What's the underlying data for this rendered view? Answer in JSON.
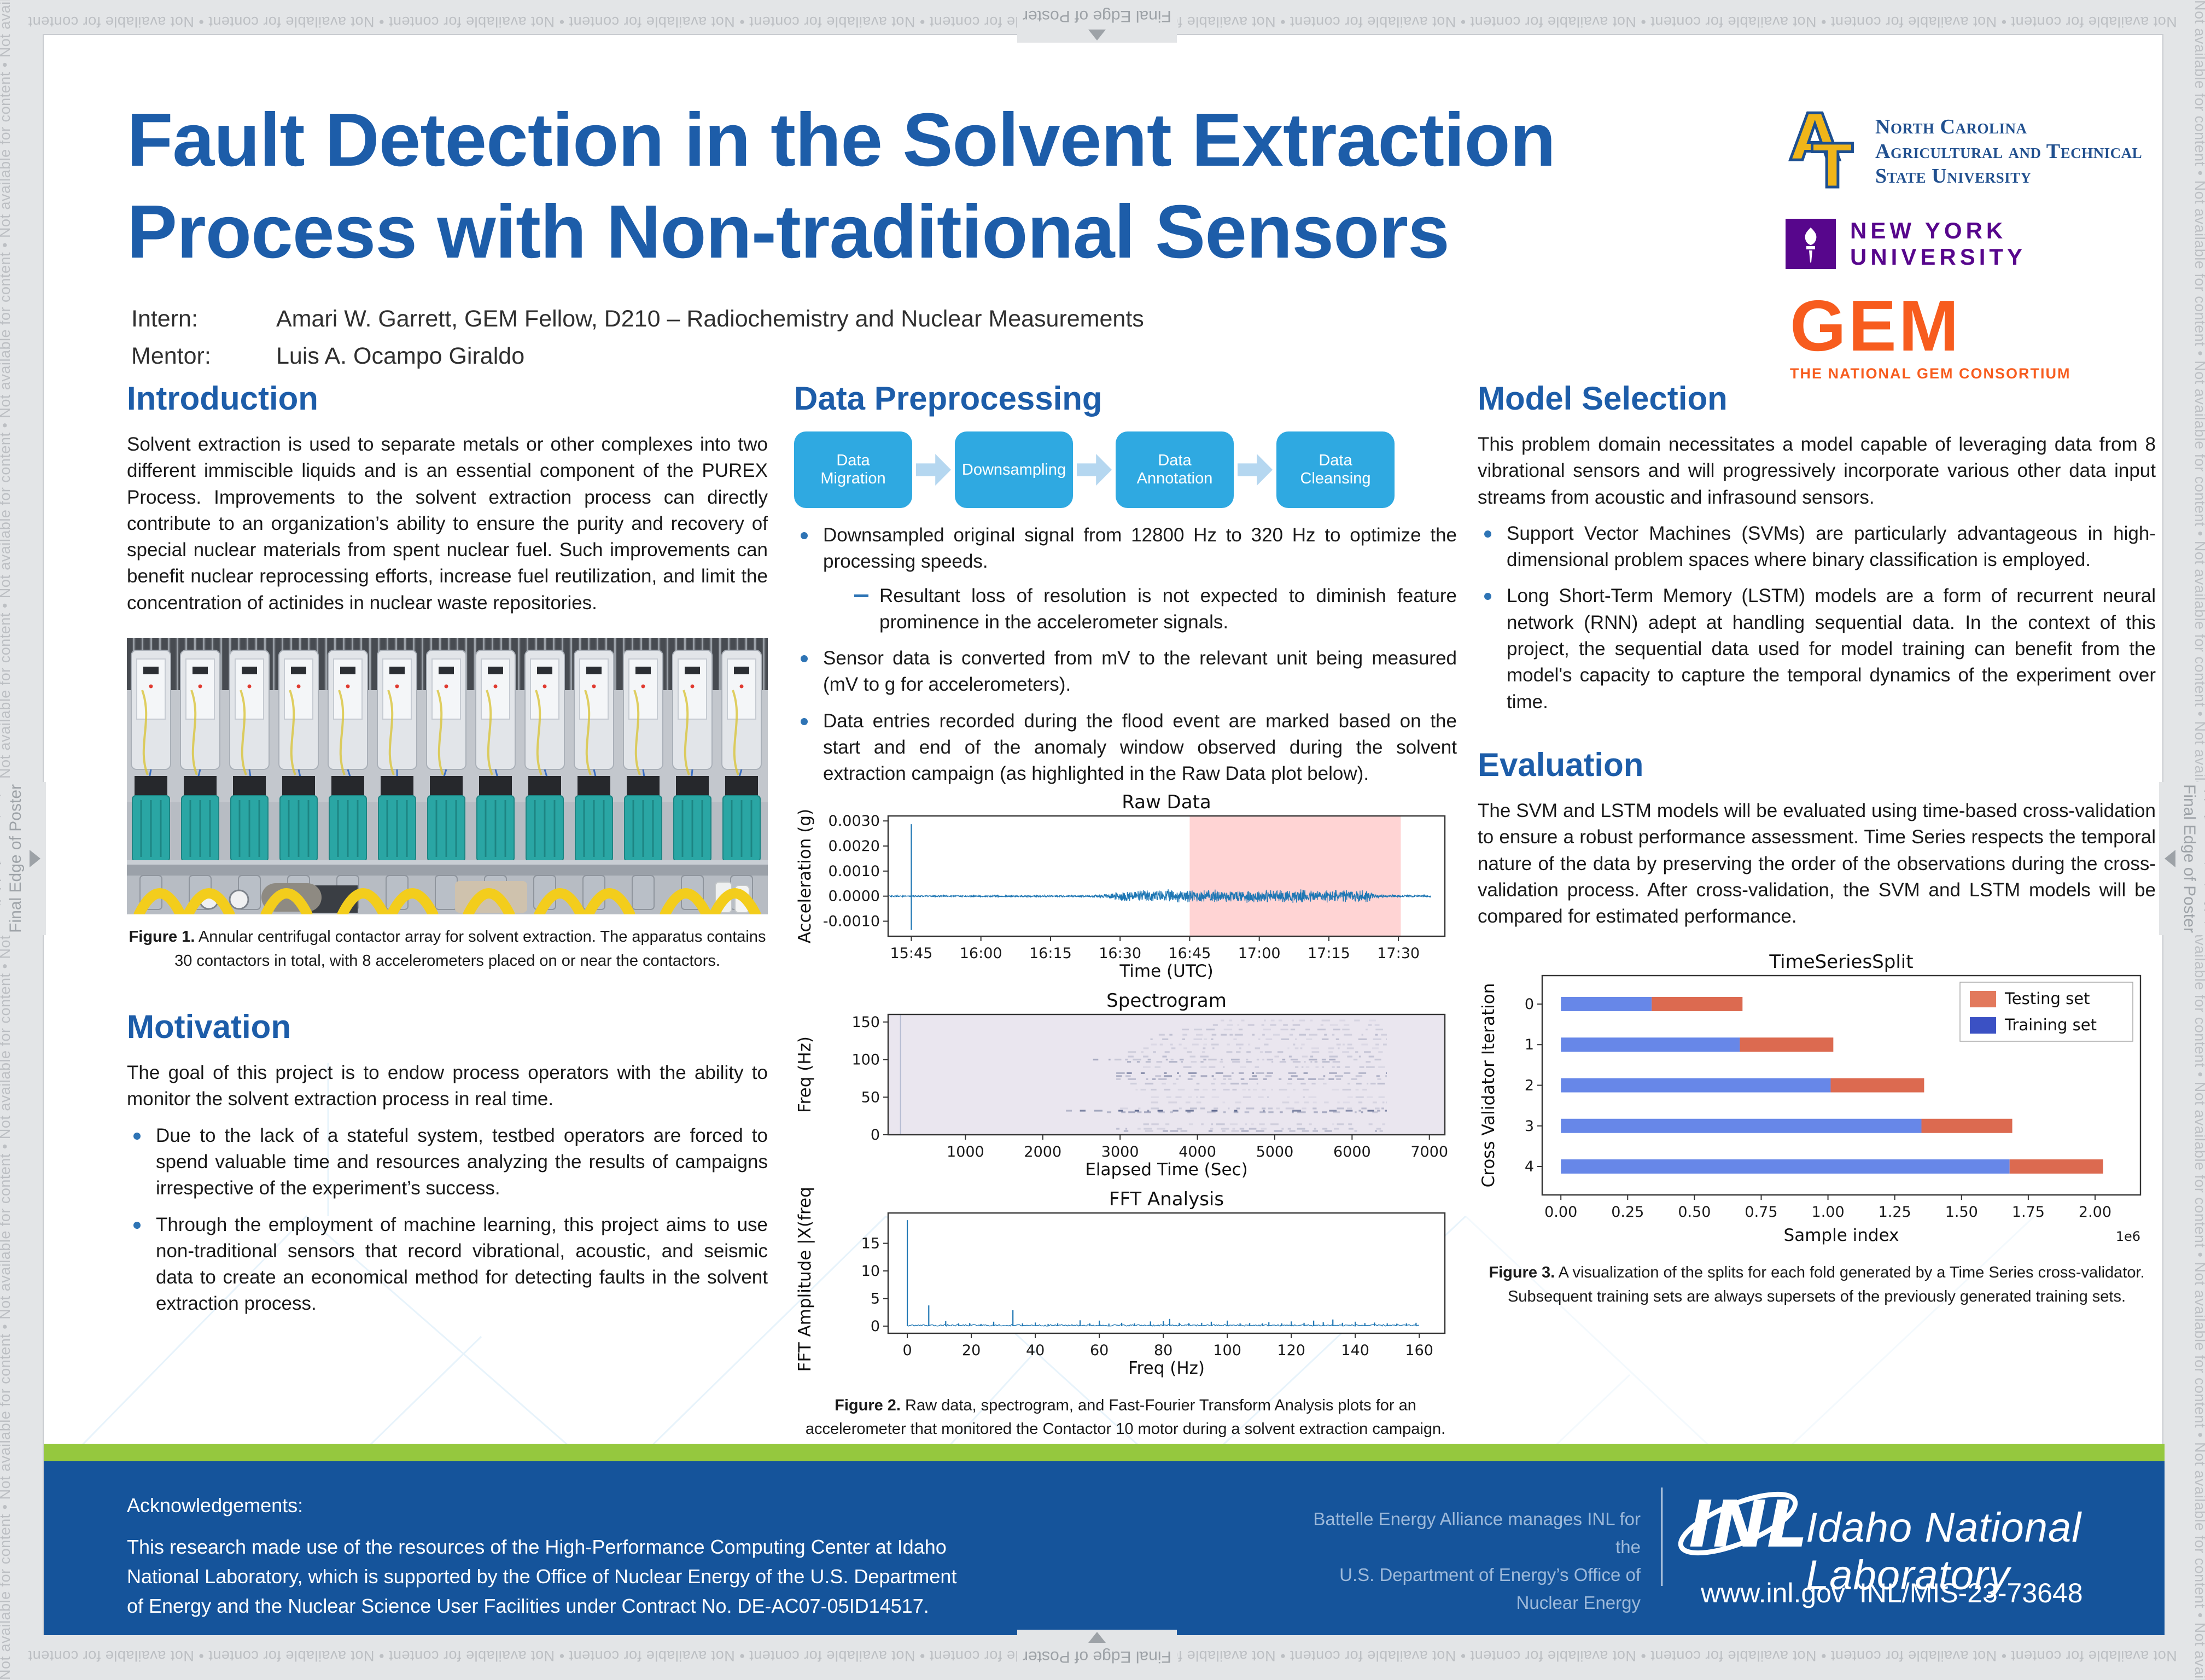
{
  "edge": {
    "repeat_text": "Not available for content",
    "final_label": "Final Edge of Poster"
  },
  "header": {
    "title_line1": "Fault Detection in the Solvent Extraction",
    "title_line2": "Process with Non-traditional Sensors",
    "intern_label": "Intern:",
    "intern_value": "Amari W. Garrett, GEM Fellow, D210 – Radiochemistry and Nuclear Measurements",
    "mentor_label": "Mentor:",
    "mentor_value": "Luis A. Ocampo Giraldo"
  },
  "logos": {
    "ncat_monogram": "A&T",
    "ncat_line1": "North Carolina",
    "ncat_line2": "Agricultural and Technical",
    "ncat_line3": "State University",
    "nyu_text": "NEW YORK UNIVERSITY",
    "gem_text": "GEM",
    "gem_tagline": "THE NATIONAL GEM CONSORTIUM"
  },
  "intro": {
    "heading": "Introduction",
    "body": "Solvent extraction is used to separate metals or other complexes into two different immiscible liquids and is an essential component of the PUREX Process. Improvements to the solvent extraction process can directly contribute to an organization’s ability to ensure the purity and recovery of special nuclear materials from spent nuclear fuel. Such improvements can benefit nuclear reprocessing efforts, increase fuel reutilization, and limit the concentration of actinides in nuclear waste repositories."
  },
  "figure1": {
    "label": "Figure 1.",
    "text": " Annular centrifugal contactor array for solvent extraction. The apparatus contains 30 contactors in total, with 8 accelerometers placed on or near the contactors."
  },
  "motivation": {
    "heading": "Motivation",
    "body": "The goal of this project is to endow process operators with the ability to monitor the solvent extraction process in real time.",
    "bullets": [
      "Due to the lack of a stateful system, testbed operators are forced to spend valuable time and resources analyzing the results of campaigns irrespective of the experiment’s success.",
      "Through the employment of machine learning, this project aims to use non-traditional sensors that record vibrational, acoustic, and seismic data to create an economical method for detecting faults in the solvent extraction process."
    ]
  },
  "preprocessing": {
    "heading": "Data Preprocessing",
    "flow": [
      "Data Migration",
      "Downsampling",
      "Data Annotation",
      "Data Cleansing"
    ],
    "bullet1": "Downsampled original signal from 12800 Hz to 320 Hz to optimize the processing speeds.",
    "sub1": "Resultant loss of resolution is not expected to diminish feature prominence in the accelerometer signals.",
    "bullet2": "Sensor data is converted from mV to the relevant unit being measured (mV to g for accelerometers).",
    "bullet3": "Data entries recorded during the flood event are marked based on the start and end of the anomaly window observed during the solvent extraction campaign (as highlighted in the Raw Data plot below)."
  },
  "figure2": {
    "label": "Figure 2.",
    "text": " Raw data, spectrogram, and Fast-Fourier Transform Analysis plots for an accelerometer that monitored the Contactor 10 motor during a solvent extraction campaign."
  },
  "model": {
    "heading": "Model Selection",
    "body": "This problem domain necessitates a model capable of leveraging data from 8 vibrational sensors and will progressively incorporate various other data input streams from acoustic and infrasound sensors.",
    "bullets": [
      "Support Vector Machines (SVMs) are particularly advantageous in high-dimensional problem spaces where binary classification is employed.",
      "Long Short-Term Memory (LSTM) models are a form of recurrent neural network (RNN) adept at handling sequential data. In the context of this project, the sequential data used for model training can benefit from the model's capacity to capture the temporal dynamics of the experiment over time."
    ]
  },
  "evaluation": {
    "heading": "Evaluation",
    "body": "The SVM and LSTM models will be evaluated using time-based cross-validation to ensure a robust performance assessment. Time Series respects the temporal nature of the data by preserving the order of the observations during the cross-validation process. After cross-validation, the SVM and LSTM models will be compared for estimated performance."
  },
  "figure3": {
    "label": "Figure 3.",
    "text": " A visualization of the splits for each fold generated by a Time Series cross-validator. Subsequent training sets are always supersets of the previously generated training sets."
  },
  "footer": {
    "ack_label": "Acknowledgements:",
    "ack_body": "This research made use of the resources of the High-Performance Computing Center at Idaho National Laboratory, which is supported by the Office of Nuclear Energy of the U.S. Department of Energy and the Nuclear Science User Facilities under Contract No. DE-AC07-05ID14517.",
    "battelle_line1": "Battelle Energy Alliance manages INL for the",
    "battelle_line2": "U.S. Department of Energy’s Office of Nuclear Energy",
    "inl_mark": "INL",
    "inl_wordmark": "Idaho National Laboratory",
    "url": "www.inl.gov",
    "doc_number": "INL/MIS-23-73648",
    "green_color": "#95c83e",
    "blue_color": "#15549b"
  },
  "chart_data": [
    {
      "id": "raw",
      "type": "line",
      "title": "Raw Data",
      "xlabel": "Time (UTC)",
      "ylabel": "Acceleration (g)",
      "x_tick_labels": [
        "15:45",
        "16:00",
        "16:15",
        "16:30",
        "16:45",
        "17:00",
        "17:15",
        "17:30"
      ],
      "x_tick_minutes": [
        5,
        20,
        35,
        50,
        65,
        80,
        95,
        110
      ],
      "xlim_minutes": [
        0,
        120
      ],
      "y_ticks": [
        0.003,
        0.002,
        0.001,
        0.0,
        -0.001
      ],
      "y_tick_labels": [
        "0.0030",
        "0.0020",
        "0.0010",
        "0.0000",
        "-0.0010"
      ],
      "ylim": [
        -0.0016,
        0.0032
      ],
      "line_color": "#1f77b4",
      "anomaly_window": {
        "start_min": 65,
        "end_min": 110.5,
        "color": "#ffc6c6"
      },
      "spike": {
        "minute": 5,
        "ymin": -0.00135,
        "ymax": 0.00287
      },
      "noise_envelope": [
        [
          0,
          3e-05
        ],
        [
          43,
          4e-05
        ],
        [
          47,
          9e-05
        ],
        [
          51,
          0.00024
        ],
        [
          56,
          0.00028
        ],
        [
          99,
          0.00029
        ],
        [
          104,
          0.00028
        ],
        [
          105,
          6e-05
        ],
        [
          117,
          4e-05
        ]
      ]
    },
    {
      "id": "spectrogram",
      "type": "heatmap",
      "title": "Spectrogram",
      "xlabel": "Elapsed Time (Sec)",
      "ylabel": "Freq (Hz)",
      "x_ticks": [
        1000,
        2000,
        3000,
        4000,
        5000,
        6000,
        7000
      ],
      "xlim": [
        0,
        7200
      ],
      "y_ticks": [
        0,
        50,
        100,
        150
      ],
      "ylim": [
        0,
        160
      ],
      "bg_color": "#eae6ef",
      "band_color": "#31406f",
      "startup_line_x": 160,
      "bands": [
        {
          "freq": 32,
          "start": 2300,
          "end": 6450,
          "strength": 0.9
        },
        {
          "freq": 30,
          "start": 2650,
          "end": 6450,
          "strength": 0.45
        },
        {
          "freq": 35,
          "start": 3000,
          "end": 6450,
          "strength": 0.3
        },
        {
          "freq": 82,
          "start": 2950,
          "end": 6450,
          "strength": 0.75
        },
        {
          "freq": 78,
          "start": 2950,
          "end": 6450,
          "strength": 0.5
        },
        {
          "freq": 74,
          "start": 2950,
          "end": 6450,
          "strength": 0.4
        },
        {
          "freq": 68,
          "start": 3000,
          "end": 6450,
          "strength": 0.28
        },
        {
          "freq": 100,
          "start": 2650,
          "end": 6450,
          "strength": 0.42
        },
        {
          "freq": 97,
          "start": 2950,
          "end": 6450,
          "strength": 0.35
        },
        {
          "freq": 104,
          "start": 3100,
          "end": 6450,
          "strength": 0.3
        },
        {
          "freq": 110,
          "start": 3100,
          "end": 6450,
          "strength": 0.22
        },
        {
          "freq": 115,
          "start": 3300,
          "end": 6450,
          "strength": 0.2
        },
        {
          "freq": 127,
          "start": 3300,
          "end": 6450,
          "strength": 0.25
        },
        {
          "freq": 133,
          "start": 3500,
          "end": 6450,
          "strength": 0.3
        },
        {
          "freq": 140,
          "start": 3800,
          "end": 6450,
          "strength": 0.25
        },
        {
          "freq": 146,
          "start": 4200,
          "end": 6450,
          "strength": 0.18
        },
        {
          "freq": 8,
          "start": 2950,
          "end": 6450,
          "strength": 0.3
        },
        {
          "freq": 5,
          "start": 2950,
          "end": 6450,
          "strength": 0.4
        },
        {
          "freq": 14,
          "start": 3300,
          "end": 6450,
          "strength": 0.2
        },
        {
          "freq": 60,
          "start": 3200,
          "end": 6450,
          "strength": 0.2
        },
        {
          "freq": 50,
          "start": 3400,
          "end": 6450,
          "strength": 0.15
        },
        {
          "freq": 90,
          "start": 3000,
          "end": 6450,
          "strength": 0.2
        },
        {
          "freq": 120,
          "start": 3400,
          "end": 6450,
          "strength": 0.18
        },
        {
          "freq": 152,
          "start": 4300,
          "end": 6450,
          "strength": 0.15
        },
        {
          "freq": 43,
          "start": 3400,
          "end": 6450,
          "strength": 0.15
        }
      ]
    },
    {
      "id": "fft",
      "type": "line",
      "title": "FFT Analysis",
      "xlabel": "Freq (Hz)",
      "ylabel": "FFT Amplitude |X(freq)|",
      "x_ticks": [
        0,
        20,
        40,
        60,
        80,
        100,
        120,
        140,
        160
      ],
      "xlim": [
        -6,
        168
      ],
      "y_ticks": [
        0,
        5,
        10,
        15
      ],
      "ylim": [
        -1.3,
        20.5
      ],
      "line_color": "#1f77b4",
      "noise_max": 0.28,
      "peaks": [
        [
          0,
          19.2
        ],
        [
          6.7,
          3.75
        ],
        [
          12,
          0.9
        ],
        [
          16,
          0.5
        ],
        [
          19.5,
          0.55
        ],
        [
          23,
          0.4
        ],
        [
          27,
          0.8
        ],
        [
          33,
          2.9
        ],
        [
          36,
          0.5
        ],
        [
          40,
          0.65
        ],
        [
          44,
          0.4
        ],
        [
          47,
          0.5
        ],
        [
          54,
          1.05
        ],
        [
          57,
          0.5
        ],
        [
          60,
          1.0
        ],
        [
          63,
          0.45
        ],
        [
          67,
          0.6
        ],
        [
          71,
          0.5
        ],
        [
          76,
          0.85
        ],
        [
          80,
          0.9
        ],
        [
          82,
          1.3
        ],
        [
          85,
          0.6
        ],
        [
          88,
          0.55
        ],
        [
          92,
          0.6
        ],
        [
          95,
          0.8
        ],
        [
          100,
          1.0
        ],
        [
          104,
          0.5
        ],
        [
          107,
          0.55
        ],
        [
          111,
          0.5
        ],
        [
          113,
          0.7
        ],
        [
          117,
          0.5
        ],
        [
          120,
          0.85
        ],
        [
          124,
          0.6
        ],
        [
          127,
          1.0
        ],
        [
          130,
          0.7
        ],
        [
          133,
          1.2
        ],
        [
          136,
          0.6
        ],
        [
          140,
          0.8
        ],
        [
          143,
          0.55
        ],
        [
          146,
          0.65
        ],
        [
          150,
          0.5
        ],
        [
          153,
          0.45
        ],
        [
          156,
          0.5
        ],
        [
          159,
          0.6
        ]
      ]
    },
    {
      "id": "tss",
      "type": "bar",
      "title": "TimeSeriesSplit",
      "xlabel": "Sample index",
      "ylabel": "Cross Validator Iteration",
      "x_ticks": [
        0,
        0.25,
        0.5,
        0.75,
        1,
        1.25,
        1.5,
        1.75,
        2
      ],
      "x_tick_labels": [
        "0.00",
        "0.25",
        "0.50",
        "0.75",
        "1.00",
        "1.25",
        "1.50",
        "1.75",
        "2.00"
      ],
      "xlim": [
        -0.07,
        2.17
      ],
      "offset_label": "1e6",
      "y_ticks": [
        0,
        1,
        2,
        3,
        4
      ],
      "legend": [
        {
          "label": "Testing set",
          "color": "#e2795c"
        },
        {
          "label": "Training set",
          "color": "#3b51c4"
        }
      ],
      "train_color": "#6787e8",
      "test_color": "#dc6a50",
      "splits": [
        {
          "iteration": 0,
          "train_end": 0.34,
          "test_end": 0.68
        },
        {
          "iteration": 1,
          "train_end": 0.67,
          "test_end": 1.02
        },
        {
          "iteration": 2,
          "train_end": 1.01,
          "test_end": 1.36
        },
        {
          "iteration": 3,
          "train_end": 1.35,
          "test_end": 1.69
        },
        {
          "iteration": 4,
          "train_end": 1.68,
          "test_end": 2.03
        }
      ]
    }
  ]
}
